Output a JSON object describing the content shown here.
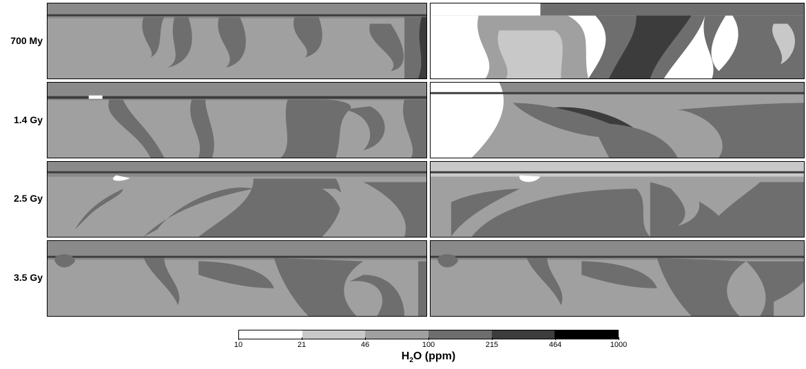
{
  "chart_data": {
    "type": "heatmap",
    "rows": [
      "700 My",
      "1.4 Gy",
      "2.5 Gy",
      "3.5 Gy"
    ],
    "columns": 2,
    "colorbar": {
      "boundaries": [
        "10",
        "21",
        "46",
        "100",
        "215",
        "464",
        "1000"
      ],
      "colors": [
        "#ffffff",
        "#c8c8c8",
        "#a0a0a0",
        "#6e6e6e",
        "#3c3c3c",
        "#000000"
      ],
      "title_main": "H",
      "title_sub": "2",
      "title_rest": "O (ppm)"
    }
  }
}
